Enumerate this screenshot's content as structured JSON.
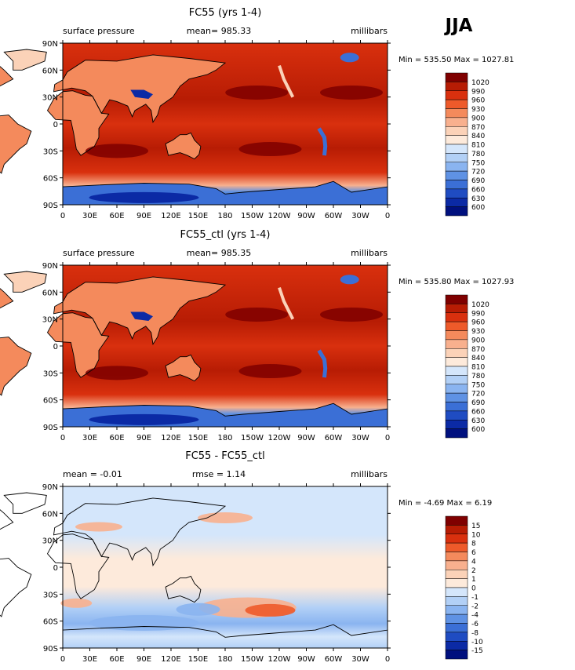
{
  "season": "JJA",
  "chart_data": [
    {
      "type": "heatmap",
      "title": "FC55 (yrs 1-4)",
      "left_label": "surface pressure",
      "center_label": "mean= 985.33",
      "units": "millibars",
      "stats": "Min = 535.50 Max = 1027.81",
      "yticks": [
        "90N",
        "60N",
        "30N",
        "0",
        "30S",
        "60S",
        "90S"
      ],
      "xticks": [
        "0",
        "30E",
        "60E",
        "90E",
        "120E",
        "150E",
        "180",
        "150W",
        "120W",
        "90W",
        "60W",
        "30W",
        "0"
      ],
      "levels": [
        "1020",
        "990",
        "960",
        "930",
        "900",
        "870",
        "840",
        "810",
        "780",
        "750",
        "720",
        "690",
        "660",
        "630",
        "600"
      ],
      "colors": [
        "#7f0000",
        "#b71c04",
        "#d9300e",
        "#ee5a2a",
        "#f48a5c",
        "#f8b08e",
        "#fbd2b8",
        "#fdeadb",
        "#d4e6fb",
        "#b2d0f6",
        "#8ab4f0",
        "#5f92e4",
        "#3b6fd6",
        "#1f4cc2",
        "#0b2aa5",
        "#00107e"
      ]
    },
    {
      "type": "heatmap",
      "title": "FC55_ctl (yrs 1-4)",
      "left_label": "surface pressure",
      "center_label": "mean= 985.35",
      "units": "millibars",
      "stats": "Min = 535.80 Max = 1027.93",
      "yticks": [
        "90N",
        "60N",
        "30N",
        "0",
        "30S",
        "60S",
        "90S"
      ],
      "xticks": [
        "0",
        "30E",
        "60E",
        "90E",
        "120E",
        "150E",
        "180",
        "150W",
        "120W",
        "90W",
        "60W",
        "30W",
        "0"
      ],
      "levels": [
        "1020",
        "990",
        "960",
        "930",
        "900",
        "870",
        "840",
        "810",
        "780",
        "750",
        "720",
        "690",
        "660",
        "630",
        "600"
      ],
      "colors": [
        "#7f0000",
        "#b71c04",
        "#d9300e",
        "#ee5a2a",
        "#f48a5c",
        "#f8b08e",
        "#fbd2b8",
        "#fdeadb",
        "#d4e6fb",
        "#b2d0f6",
        "#8ab4f0",
        "#5f92e4",
        "#3b6fd6",
        "#1f4cc2",
        "#0b2aa5",
        "#00107e"
      ]
    },
    {
      "type": "heatmap",
      "title": "FC55 - FC55_ctl",
      "left_label": "mean =   -0.01",
      "center_label": "rmse =    1.14",
      "units": "millibars",
      "stats": "Min =  -4.69 Max =    6.19",
      "yticks": [
        "90N",
        "60N",
        "30N",
        "0",
        "30S",
        "60S",
        "90S"
      ],
      "xticks": [
        "0",
        "30E",
        "60E",
        "90E",
        "120E",
        "150E",
        "180",
        "150W",
        "120W",
        "90W",
        "60W",
        "30W",
        "0"
      ],
      "levels": [
        "15",
        "10",
        "8",
        "6",
        "4",
        "2",
        "1",
        "0",
        "-1",
        "-2",
        "-4",
        "-6",
        "-8",
        "-10",
        "-15"
      ],
      "colors": [
        "#7f0000",
        "#b71c04",
        "#d9300e",
        "#ee5a2a",
        "#f48a5c",
        "#f8b08e",
        "#fbd2b8",
        "#fdeadb",
        "#d4e6fb",
        "#b2d0f6",
        "#8ab4f0",
        "#5f92e4",
        "#3b6fd6",
        "#1f4cc2",
        "#0b2aa5",
        "#00107e"
      ]
    }
  ]
}
